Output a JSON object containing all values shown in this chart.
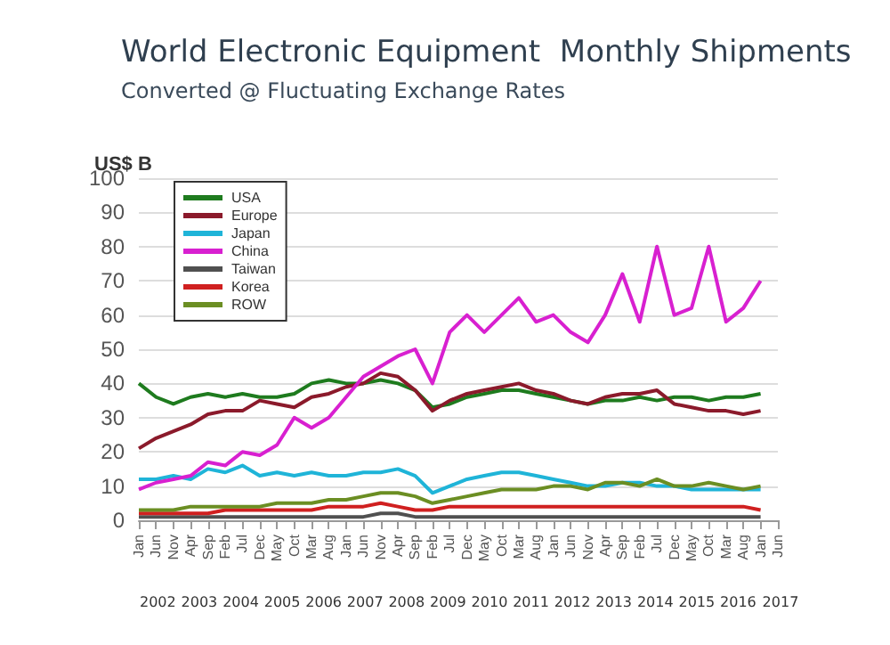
{
  "chart_data": {
    "type": "line",
    "title": "World Electronic Equipment  Monthly Shipments",
    "subtitle": "Converted @ Fluctuating Exchange Rates",
    "ylabel": "US$ B",
    "categories": [
      "Jan",
      "Jun",
      "Nov",
      "Apr",
      "Sep",
      "Feb",
      "Jul",
      "Dec",
      "May",
      "Oct",
      "Mar",
      "Aug",
      "Jan",
      "Jun",
      "Nov",
      "Apr",
      "Sep",
      "Feb",
      "Jul",
      "Dec",
      "May",
      "Oct",
      "Mar",
      "Aug",
      "Jan",
      "Jun",
      "Nov",
      "Apr",
      "Sep",
      "Feb",
      "Jul",
      "Dec",
      "May",
      "Oct",
      "Mar",
      "Aug",
      "Jan",
      "Jun"
    ],
    "annotations": [
      "2002",
      "2003",
      "2004",
      "2005",
      "2006",
      "2007",
      "2008",
      "2009",
      "2010",
      "2011",
      "2012",
      "2013",
      "2014",
      "2015",
      "2016",
      "2017"
    ],
    "series": [
      {
        "name": "USA",
        "color": "#1e7b1e",
        "values": [
          40,
          36,
          34,
          36,
          37,
          36,
          37,
          36,
          36,
          37,
          40,
          41,
          40,
          40,
          41,
          40,
          38,
          33,
          34,
          36,
          37,
          38,
          38,
          37,
          36,
          35,
          34,
          35,
          35,
          36,
          35,
          36,
          36,
          35,
          36,
          36,
          37,
          null
        ]
      },
      {
        "name": "Europe",
        "color": "#8b1a2b",
        "values": [
          21,
          24,
          26,
          28,
          31,
          32,
          32,
          35,
          34,
          33,
          36,
          37,
          39,
          40,
          43,
          42,
          38,
          32,
          35,
          37,
          38,
          39,
          40,
          38,
          37,
          35,
          34,
          36,
          37,
          37,
          38,
          34,
          33,
          32,
          32,
          31,
          32,
          null
        ]
      },
      {
        "name": "Japan",
        "color": "#1fb4d8",
        "values": [
          12,
          12,
          13,
          12,
          15,
          14,
          16,
          13,
          14,
          13,
          14,
          13,
          13,
          14,
          14,
          15,
          13,
          8,
          10,
          12,
          13,
          14,
          14,
          13,
          12,
          11,
          10,
          10,
          11,
          11,
          10,
          10,
          9,
          9,
          9,
          9,
          9,
          null
        ]
      },
      {
        "name": "China",
        "color": "#d820d0",
        "values": [
          9,
          11,
          12,
          13,
          17,
          16,
          20,
          19,
          22,
          30,
          27,
          30,
          36,
          42,
          45,
          48,
          50,
          40,
          55,
          60,
          55,
          60,
          65,
          58,
          60,
          55,
          52,
          60,
          72,
          58,
          80,
          60,
          62,
          80,
          58,
          62,
          70,
          null
        ]
      },
      {
        "name": "Taiwan",
        "color": "#505050",
        "values": [
          1,
          1,
          1,
          1,
          1,
          1,
          1,
          1,
          1,
          1,
          1,
          1,
          1,
          1,
          2,
          2,
          1,
          1,
          1,
          1,
          1,
          1,
          1,
          1,
          1,
          1,
          1,
          1,
          1,
          1,
          1,
          1,
          1,
          1,
          1,
          1,
          1,
          null
        ]
      },
      {
        "name": "Korea",
        "color": "#d02020",
        "values": [
          2,
          2,
          2,
          2,
          2,
          3,
          3,
          3,
          3,
          3,
          3,
          4,
          4,
          4,
          5,
          4,
          3,
          3,
          4,
          4,
          4,
          4,
          4,
          4,
          4,
          4,
          4,
          4,
          4,
          4,
          4,
          4,
          4,
          4,
          4,
          4,
          3,
          null
        ]
      },
      {
        "name": "ROW",
        "color": "#6b8e23",
        "values": [
          3,
          3,
          3,
          4,
          4,
          4,
          4,
          4,
          5,
          5,
          5,
          6,
          6,
          7,
          8,
          8,
          7,
          5,
          6,
          7,
          8,
          9,
          9,
          9,
          10,
          10,
          9,
          11,
          11,
          10,
          12,
          10,
          10,
          11,
          10,
          9,
          10,
          null
        ]
      }
    ],
    "ylim": [
      0,
      100
    ],
    "yticks": [
      0,
      10,
      20,
      30,
      40,
      50,
      60,
      70,
      80,
      90,
      100
    ],
    "grid": "y",
    "legend": "top left",
    "marker": "none",
    "line_style": "solid"
  }
}
